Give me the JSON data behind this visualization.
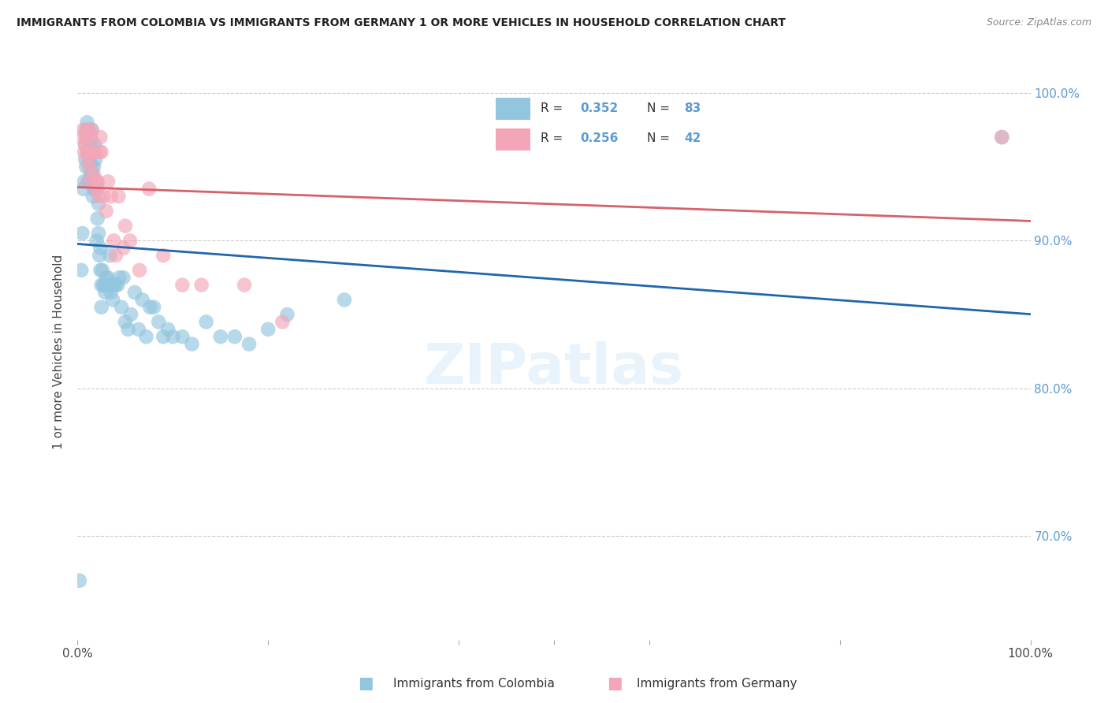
{
  "title": "IMMIGRANTS FROM COLOMBIA VS IMMIGRANTS FROM GERMANY 1 OR MORE VEHICLES IN HOUSEHOLD CORRELATION CHART",
  "source": "Source: ZipAtlas.com",
  "ylabel": "1 or more Vehicles in Household",
  "legend_label1": "Immigrants from Colombia",
  "legend_label2": "Immigrants from Germany",
  "R_colombia": 0.352,
  "N_colombia": 83,
  "R_germany": 0.256,
  "N_germany": 42,
  "color_colombia": "#92c5de",
  "color_germany": "#f4a6b8",
  "line_colombia": "#2166ac",
  "line_germany": "#d6616b",
  "ytick_labels": [
    "70.0%",
    "80.0%",
    "90.0%",
    "100.0%"
  ],
  "ytick_values": [
    0.7,
    0.8,
    0.9,
    1.0
  ],
  "xlim": [
    0.0,
    1.0
  ],
  "ylim": [
    0.63,
    1.02
  ],
  "colombia_x": [
    0.002,
    0.004,
    0.005,
    0.006,
    0.007,
    0.008,
    0.008,
    0.009,
    0.009,
    0.01,
    0.01,
    0.01,
    0.011,
    0.011,
    0.012,
    0.012,
    0.013,
    0.013,
    0.014,
    0.014,
    0.015,
    0.015,
    0.015,
    0.016,
    0.016,
    0.017,
    0.017,
    0.018,
    0.018,
    0.019,
    0.019,
    0.02,
    0.02,
    0.021,
    0.021,
    0.022,
    0.022,
    0.023,
    0.024,
    0.024,
    0.025,
    0.025,
    0.026,
    0.027,
    0.028,
    0.029,
    0.03,
    0.031,
    0.032,
    0.033,
    0.034,
    0.035,
    0.036,
    0.037,
    0.038,
    0.04,
    0.042,
    0.044,
    0.046,
    0.048,
    0.05,
    0.053,
    0.056,
    0.06,
    0.064,
    0.068,
    0.072,
    0.076,
    0.08,
    0.085,
    0.09,
    0.095,
    0.1,
    0.11,
    0.12,
    0.135,
    0.15,
    0.165,
    0.18,
    0.2,
    0.22,
    0.28,
    0.97
  ],
  "colombia_y": [
    0.67,
    0.88,
    0.905,
    0.935,
    0.94,
    0.955,
    0.965,
    0.975,
    0.95,
    0.96,
    0.97,
    0.98,
    0.975,
    0.94,
    0.94,
    0.965,
    0.97,
    0.955,
    0.95,
    0.945,
    0.975,
    0.965,
    0.945,
    0.96,
    0.93,
    0.935,
    0.95,
    0.935,
    0.965,
    0.935,
    0.955,
    0.9,
    0.94,
    0.935,
    0.915,
    0.925,
    0.905,
    0.89,
    0.895,
    0.88,
    0.87,
    0.855,
    0.88,
    0.87,
    0.87,
    0.865,
    0.875,
    0.87,
    0.875,
    0.87,
    0.89,
    0.865,
    0.87,
    0.86,
    0.87,
    0.87,
    0.87,
    0.875,
    0.855,
    0.875,
    0.845,
    0.84,
    0.85,
    0.865,
    0.84,
    0.86,
    0.835,
    0.855,
    0.855,
    0.845,
    0.835,
    0.84,
    0.835,
    0.835,
    0.83,
    0.845,
    0.835,
    0.835,
    0.83,
    0.84,
    0.85,
    0.86,
    0.97
  ],
  "germany_x": [
    0.004,
    0.006,
    0.007,
    0.008,
    0.009,
    0.01,
    0.01,
    0.011,
    0.012,
    0.012,
    0.013,
    0.014,
    0.015,
    0.015,
    0.016,
    0.017,
    0.018,
    0.019,
    0.02,
    0.021,
    0.022,
    0.023,
    0.024,
    0.025,
    0.027,
    0.03,
    0.032,
    0.035,
    0.038,
    0.04,
    0.043,
    0.048,
    0.05,
    0.055,
    0.065,
    0.075,
    0.09,
    0.11,
    0.13,
    0.175,
    0.215,
    0.97
  ],
  "germany_y": [
    0.97,
    0.975,
    0.96,
    0.965,
    0.97,
    0.96,
    0.975,
    0.955,
    0.95,
    0.94,
    0.96,
    0.97,
    0.96,
    0.975,
    0.96,
    0.945,
    0.96,
    0.935,
    0.94,
    0.94,
    0.93,
    0.96,
    0.97,
    0.96,
    0.93,
    0.92,
    0.94,
    0.93,
    0.9,
    0.89,
    0.93,
    0.895,
    0.91,
    0.9,
    0.88,
    0.935,
    0.89,
    0.87,
    0.87,
    0.87,
    0.845,
    0.97
  ]
}
